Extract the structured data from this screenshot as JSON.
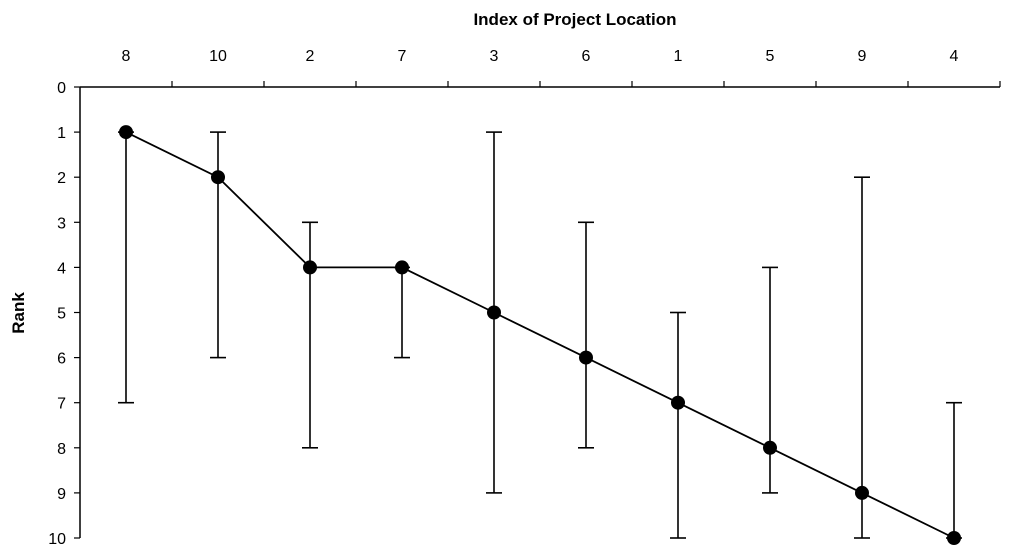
{
  "chart_data": {
    "type": "line",
    "title": "",
    "xlabel": "Index of Project Location",
    "ylabel": "Rank",
    "x_axis_position": "top",
    "y_axis_inverted": true,
    "ylim": [
      0,
      10
    ],
    "yticks": [
      0,
      1,
      2,
      3,
      4,
      5,
      6,
      7,
      8,
      9,
      10
    ],
    "grid": false,
    "legend": "none",
    "categories": [
      "8",
      "10",
      "2",
      "7",
      "3",
      "6",
      "1",
      "5",
      "9",
      "4"
    ],
    "series": [
      {
        "values": [
          1,
          2,
          4,
          4,
          5,
          6,
          7,
          8,
          9,
          10
        ],
        "error_high": [
          1,
          1,
          3,
          4,
          1,
          3,
          5,
          4,
          2,
          7
        ],
        "error_low": [
          7,
          6,
          8,
          6,
          9,
          8,
          10,
          9,
          10,
          10
        ],
        "color": "#000000",
        "marker": "circle"
      }
    ]
  }
}
